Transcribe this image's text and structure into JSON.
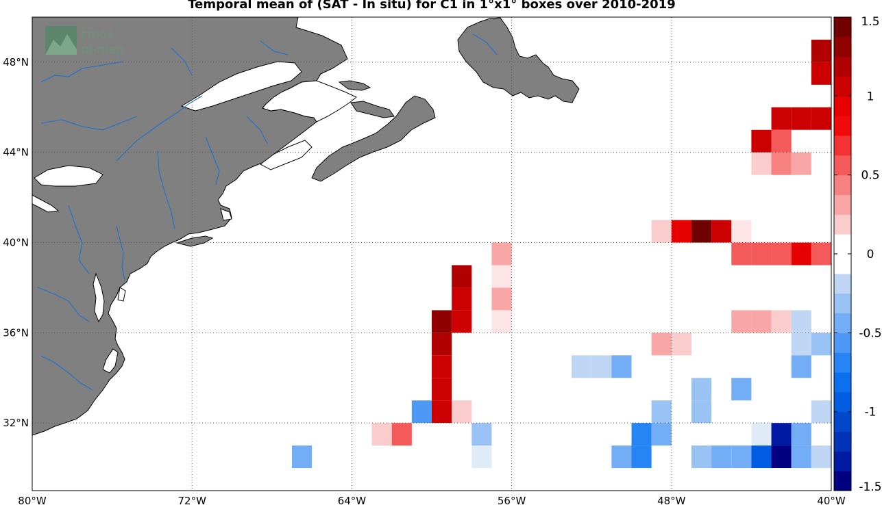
{
  "title": "Temporal mean of (SAT - In situ) for C1 in 1°x1° boxes over 2010-2019",
  "logo": {
    "line1": "smos",
    "line2": "pi-mep"
  },
  "map": {
    "lon_range": [
      -80,
      -40
    ],
    "lat_range": [
      29,
      50
    ],
    "lon_ticks": [
      {
        "lon": -80,
        "label": "80°W"
      },
      {
        "lon": -72,
        "label": "72°W"
      },
      {
        "lon": -64,
        "label": "64°W"
      },
      {
        "lon": -56,
        "label": "56°W"
      },
      {
        "lon": -48,
        "label": "48°W"
      },
      {
        "lon": -40,
        "label": "40°W"
      }
    ],
    "lat_ticks": [
      {
        "lat": 48,
        "label": "48°N"
      },
      {
        "lat": 44,
        "label": "44°N"
      },
      {
        "lat": 40,
        "label": "40°N"
      },
      {
        "lat": 36,
        "label": "36°N"
      },
      {
        "lat": 32,
        "label": "32°N"
      }
    ],
    "grid": true,
    "land_color": "#808080",
    "river_color": "#1f6fd0"
  },
  "colorbar": {
    "min": -1.5,
    "max": 1.5,
    "levels": 24,
    "tick_labels": [
      {
        "v": 1.5,
        "label": "1.5"
      },
      {
        "v": 1,
        "label": "1"
      },
      {
        "v": 0.5,
        "label": "0.5"
      },
      {
        "v": 0,
        "label": "0"
      },
      {
        "v": -0.5,
        "label": "-0.5"
      },
      {
        "v": -1,
        "label": "-1"
      },
      {
        "v": -1.5,
        "label": "-1.5"
      }
    ]
  },
  "chart_data": {
    "type": "heatmap",
    "title": "Temporal mean of (SAT - In situ) for C1 in 1°x1° boxes over 2010-2019",
    "cell_size_deg": 1,
    "cells": [
      {
        "lon": -41,
        "lat": 48,
        "v": 1.2
      },
      {
        "lon": -41,
        "lat": 47,
        "v": 1.0
      },
      {
        "lon": -43,
        "lat": 45,
        "v": 1.0
      },
      {
        "lon": -42,
        "lat": 45,
        "v": 1.1
      },
      {
        "lon": -41,
        "lat": 45,
        "v": 1.1
      },
      {
        "lon": -40,
        "lat": 45,
        "v": 1.1
      },
      {
        "lon": -44,
        "lat": 44,
        "v": 1.0
      },
      {
        "lon": -43,
        "lat": 44,
        "v": 0.6
      },
      {
        "lon": -44,
        "lat": 43,
        "v": 0.15
      },
      {
        "lon": -43,
        "lat": 43,
        "v": 0.4
      },
      {
        "lon": -42,
        "lat": 43,
        "v": 0.3
      },
      {
        "lon": -49,
        "lat": 40,
        "v": 0.15
      },
      {
        "lon": -48,
        "lat": 40,
        "v": 0.9
      },
      {
        "lon": -47,
        "lat": 40,
        "v": 1.45
      },
      {
        "lon": -46,
        "lat": 40,
        "v": 1.0
      },
      {
        "lon": -45,
        "lat": 40,
        "v": 0.1
      },
      {
        "lon": -57,
        "lat": 39,
        "v": 0.3
      },
      {
        "lon": -45,
        "lat": 39,
        "v": 0.6
      },
      {
        "lon": -44,
        "lat": 39,
        "v": 0.6
      },
      {
        "lon": -43,
        "lat": 39,
        "v": 0.6
      },
      {
        "lon": -42,
        "lat": 39,
        "v": 0.9
      },
      {
        "lon": -41,
        "lat": 39,
        "v": 0.5
      },
      {
        "lon": -59,
        "lat": 38,
        "v": 1.2
      },
      {
        "lon": -57,
        "lat": 38,
        "v": 0.1
      },
      {
        "lon": -59,
        "lat": 37,
        "v": 1.1
      },
      {
        "lon": -57,
        "lat": 37,
        "v": 0.35
      },
      {
        "lon": -60,
        "lat": 36,
        "v": 1.3
      },
      {
        "lon": -59,
        "lat": 36,
        "v": 1.1
      },
      {
        "lon": -57,
        "lat": 36,
        "v": 0.1
      },
      {
        "lon": -45,
        "lat": 36,
        "v": 0.3
      },
      {
        "lon": -44,
        "lat": 36,
        "v": 0.3
      },
      {
        "lon": -43,
        "lat": 36,
        "v": 0.15
      },
      {
        "lon": -42,
        "lat": 36,
        "v": -0.15
      },
      {
        "lon": -60,
        "lat": 35,
        "v": 1.2
      },
      {
        "lon": -49,
        "lat": 35,
        "v": 0.35
      },
      {
        "lon": -48,
        "lat": 35,
        "v": 0.15
      },
      {
        "lon": -42,
        "lat": 35,
        "v": -0.2
      },
      {
        "lon": -41,
        "lat": 35,
        "v": -0.3
      },
      {
        "lon": -60,
        "lat": 34,
        "v": 1.1
      },
      {
        "lon": -53,
        "lat": 34,
        "v": -0.25
      },
      {
        "lon": -52,
        "lat": 34,
        "v": -0.25
      },
      {
        "lon": -51,
        "lat": 34,
        "v": -0.5
      },
      {
        "lon": -42,
        "lat": 34,
        "v": -0.45
      },
      {
        "lon": -60,
        "lat": 33,
        "v": 1.0
      },
      {
        "lon": -47,
        "lat": 33,
        "v": -0.3
      },
      {
        "lon": -45,
        "lat": 33,
        "v": -0.45
      },
      {
        "lon": -61,
        "lat": 32,
        "v": -0.6
      },
      {
        "lon": -60,
        "lat": 32,
        "v": 1.0
      },
      {
        "lon": -59,
        "lat": 32,
        "v": 0.15
      },
      {
        "lon": -49,
        "lat": 32,
        "v": -0.3
      },
      {
        "lon": -47,
        "lat": 32,
        "v": -0.35
      },
      {
        "lon": -41,
        "lat": 32,
        "v": -0.25
      },
      {
        "lon": -40,
        "lat": 32,
        "v": -0.25
      },
      {
        "lon": -63,
        "lat": 31,
        "v": 0.15
      },
      {
        "lon": -62,
        "lat": 31,
        "v": 0.5
      },
      {
        "lon": -58,
        "lat": 31,
        "v": -0.3
      },
      {
        "lon": -50,
        "lat": 31,
        "v": -0.7
      },
      {
        "lon": -49,
        "lat": 31,
        "v": -0.4
      },
      {
        "lon": -44,
        "lat": 31,
        "v": -0.1
      },
      {
        "lon": -43,
        "lat": 31,
        "v": -1.3
      },
      {
        "lon": -42,
        "lat": 31,
        "v": -0.4
      },
      {
        "lon": -40,
        "lat": 31,
        "v": -0.15
      },
      {
        "lon": -67,
        "lat": 30,
        "v": -0.5
      },
      {
        "lon": -58,
        "lat": 30,
        "v": -0.1
      },
      {
        "lon": -51,
        "lat": 30,
        "v": -0.4
      },
      {
        "lon": -50,
        "lat": 30,
        "v": -0.7
      },
      {
        "lon": -47,
        "lat": 30,
        "v": -0.3
      },
      {
        "lon": -46,
        "lat": 30,
        "v": -0.4
      },
      {
        "lon": -45,
        "lat": 30,
        "v": -0.5
      },
      {
        "lon": -44,
        "lat": 30,
        "v": -1.0
      },
      {
        "lon": -43,
        "lat": 30,
        "v": -1.5
      },
      {
        "lon": -42,
        "lat": 30,
        "v": -0.5
      },
      {
        "lon": -41,
        "lat": 30,
        "v": -0.2
      },
      {
        "lon": -40,
        "lat": 30,
        "v": 0.2
      }
    ]
  }
}
